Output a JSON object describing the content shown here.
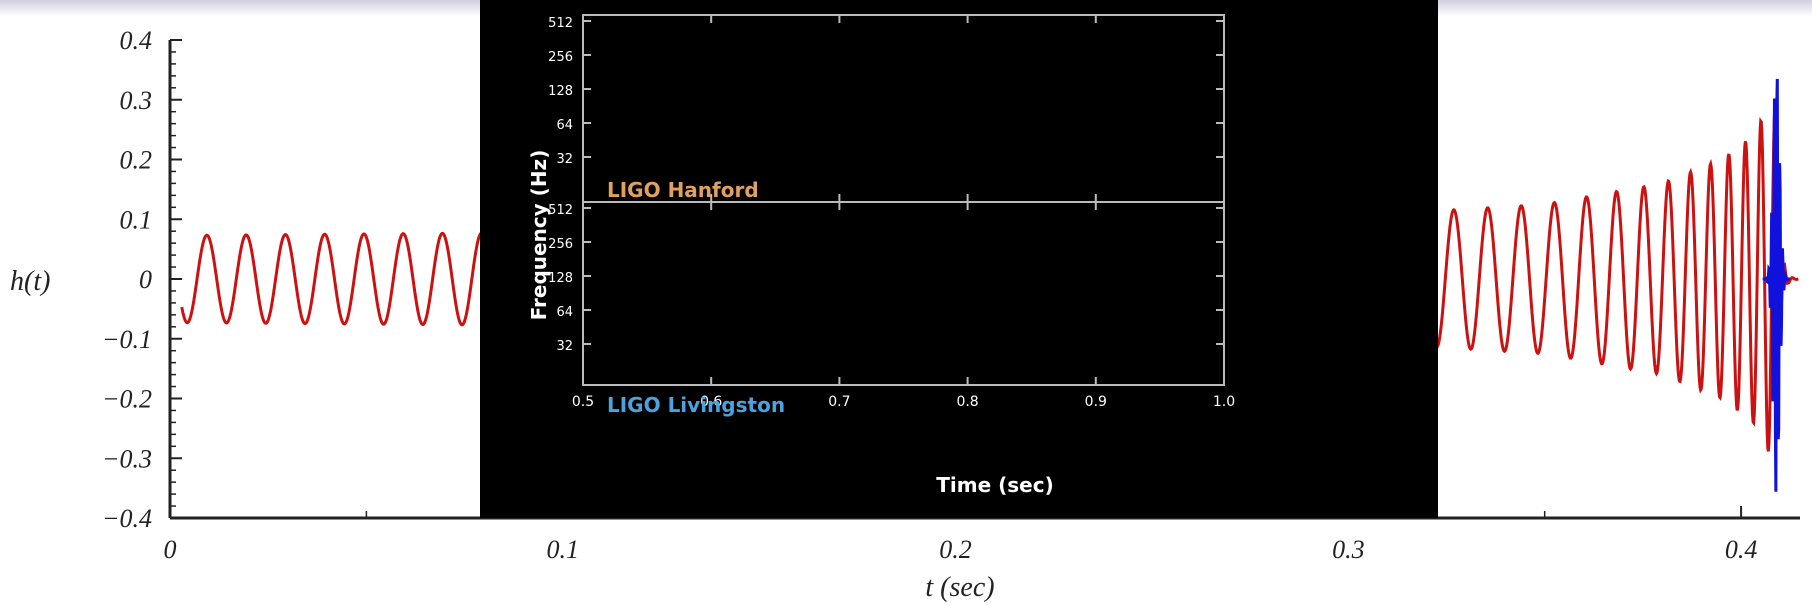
{
  "chart_data": [
    {
      "type": "line",
      "ylabel": "h(t)",
      "xlabel": "t (sec)",
      "xlim": [
        0,
        0.415
      ],
      "ylim": [
        -0.4,
        0.4
      ],
      "x_ticks": [
        "0",
        "0.1",
        "0.2",
        "0.3",
        "0.4"
      ],
      "y_ticks": [
        "0.4",
        "0.3",
        "0.2",
        "0.1",
        "0",
        "−0.1",
        "−0.2",
        "−0.3",
        "−0.4"
      ],
      "series": [
        {
          "color": "#cc1111",
          "description_points": {
            "t": [
              0.003,
              0.1,
              0.2,
              0.3,
              0.35,
              0.38,
              0.395,
              0.403,
              0.407,
              0.409
            ],
            "amplitude": [
              0.073,
              0.078,
              0.088,
              0.105,
              0.125,
              0.16,
              0.2,
              0.24,
              0.29,
              0.3
            ]
          },
          "frequency_hz": [
            100,
            130
          ]
        },
        {
          "color": "#1111dd",
          "peak_t": 0.409,
          "amplitude": [
            0.38,
            -0.38
          ]
        }
      ],
      "grid": false
    },
    {
      "type": "heatmap",
      "xlabel": "Time (sec)",
      "ylabel": "Frequency (Hz)",
      "xlim": [
        0.5,
        1.0
      ],
      "x_ticks": [
        "0.5",
        "0.6",
        "0.7",
        "0.8",
        "0.9",
        "1.0"
      ],
      "panels": [
        {
          "name": "LIGO Hanford",
          "color": "#e0a060",
          "y_ticks": [
            "512",
            "256",
            "128",
            "64",
            "32"
          ]
        },
        {
          "name": "LIGO Livingston",
          "color": "#4aa3e0",
          "y_ticks": [
            "512",
            "256",
            "128",
            "64",
            "32"
          ]
        }
      ],
      "scale": "log2"
    }
  ]
}
